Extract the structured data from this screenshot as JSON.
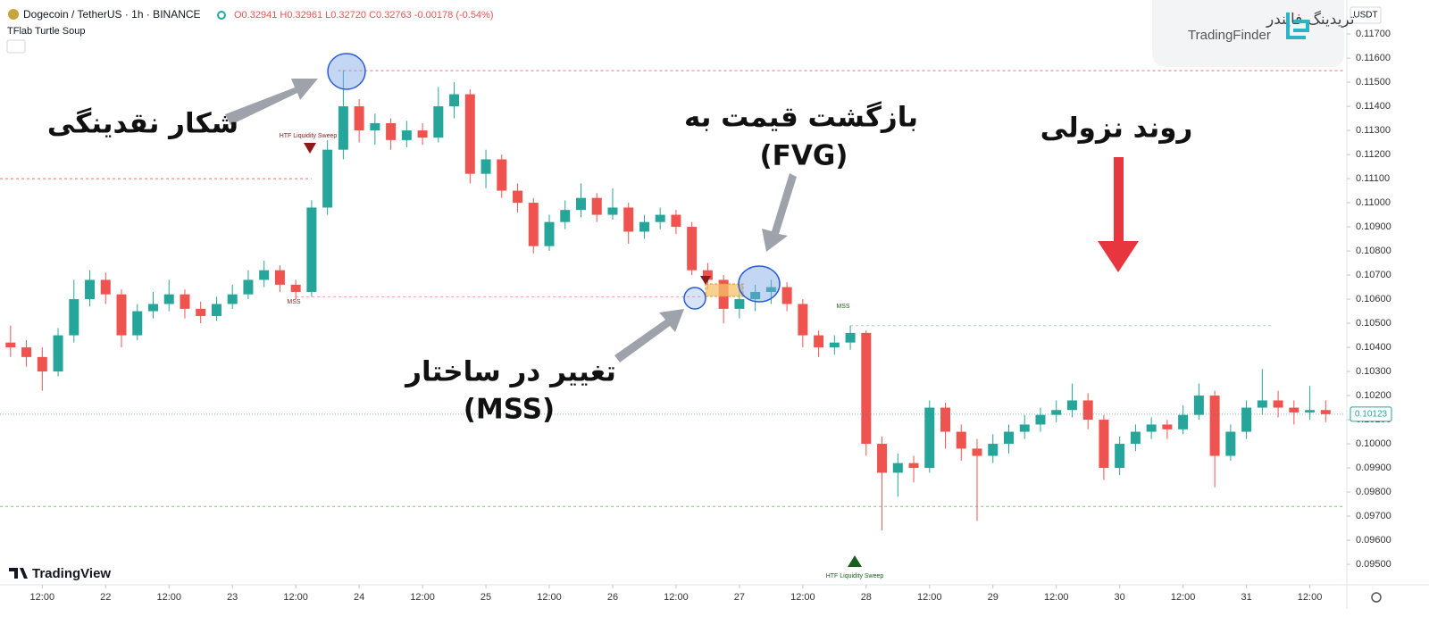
{
  "header": {
    "symbol": "Dogecoin / TetherUS · 1h · BINANCE",
    "ohlc": "O0.32941 H0.32961 L0.32720 C0.32763 -0.00178 (-0.54%)",
    "indicator": "TFlab Turtle Soup",
    "currency": "USDT",
    "brand_fa": "تریدینگ فایندر",
    "brand_en": "TradingFinder",
    "platform": "TradingView"
  },
  "annotations": {
    "liquidity_hunt": "شکار نقدینگی",
    "return_1": "بازگشت قیمت به",
    "return_2": "(FVG)",
    "downtrend": "روند نزولی",
    "mss_1": "تغییر در ساختار",
    "mss_2": "(MSS)",
    "sweep_top": "HTF Liquidity Sweep",
    "sweep_bottom": "HTF Liquidity Sweep",
    "mss_left": "MSS",
    "mss_right": "MSS"
  },
  "chart_data": {
    "type": "candlestick",
    "up_color": "#26a69a",
    "down_color": "#ef5350",
    "grid": false,
    "xlim": [
      4,
      258.5
    ],
    "ylim": [
      0.09415,
      0.11841
    ],
    "xticks": [
      {
        "value": 12,
        "label": "12:00"
      },
      {
        "value": 24,
        "label": "22"
      },
      {
        "value": 36,
        "label": "12:00"
      },
      {
        "value": 48,
        "label": "23"
      },
      {
        "value": 60,
        "label": "12:00"
      },
      {
        "value": 72,
        "label": "24"
      },
      {
        "value": 84,
        "label": "12:00"
      },
      {
        "value": 96,
        "label": "25"
      },
      {
        "value": 108,
        "label": "12:00"
      },
      {
        "value": 120,
        "label": "26"
      },
      {
        "value": 132,
        "label": "12:00"
      },
      {
        "value": 144,
        "label": "27"
      },
      {
        "value": 156,
        "label": "12:00"
      },
      {
        "value": 168,
        "label": "28"
      },
      {
        "value": 180,
        "label": "12:00"
      },
      {
        "value": 192,
        "label": "29"
      },
      {
        "value": 204,
        "label": "12:00"
      },
      {
        "value": 216,
        "label": "30"
      },
      {
        "value": 228,
        "label": "12:00"
      },
      {
        "value": 240,
        "label": "31"
      },
      {
        "value": 252,
        "label": "12:00"
      }
    ],
    "yticks": [
      {
        "value": 0.095,
        "label": "0.09500"
      },
      {
        "value": 0.096,
        "label": "0.09600"
      },
      {
        "value": 0.097,
        "label": "0.09700"
      },
      {
        "value": 0.098,
        "label": "0.09800"
      },
      {
        "value": 0.099,
        "label": "0.09900"
      },
      {
        "value": 0.1,
        "label": "0.10000"
      },
      {
        "value": 0.101,
        "label": "0.10100"
      },
      {
        "value": 0.102,
        "label": "0.10200"
      },
      {
        "value": 0.103,
        "label": "0.10300"
      },
      {
        "value": 0.104,
        "label": "0.10400"
      },
      {
        "value": 0.105,
        "label": "0.10500"
      },
      {
        "value": 0.106,
        "label": "0.10600"
      },
      {
        "value": 0.107,
        "label": "0.10700"
      },
      {
        "value": 0.108,
        "label": "0.10800"
      },
      {
        "value": 0.109,
        "label": "0.10900"
      },
      {
        "value": 0.11,
        "label": "0.11000"
      },
      {
        "value": 0.111,
        "label": "0.11100"
      },
      {
        "value": 0.112,
        "label": "0.11200"
      },
      {
        "value": 0.113,
        "label": "0.11300"
      },
      {
        "value": 0.114,
        "label": "0.11400"
      },
      {
        "value": 0.115,
        "label": "0.11500"
      },
      {
        "value": 0.116,
        "label": "0.11600"
      },
      {
        "value": 0.117,
        "label": "0.11700"
      }
    ],
    "levels": [
      {
        "value": 0.11548,
        "x": [
          68,
          258.5
        ],
        "color": "#e57373"
      },
      {
        "value": 0.111,
        "x": [
          4,
          63
        ],
        "color": "#e57373"
      },
      {
        "value": 0.1061,
        "x": [
          60,
          137
        ],
        "color": "#f0a0a0"
      },
      {
        "value": 0.1049,
        "x": [
          165,
          245
        ],
        "color": "#a5d6a7"
      },
      {
        "value": 0.0974,
        "x": [
          4,
          258.5
        ],
        "color": "#81c784"
      }
    ],
    "x": [
      6,
      9,
      12,
      15,
      18,
      21,
      24,
      27,
      30,
      33,
      36,
      39,
      42,
      45,
      48,
      51,
      54,
      57,
      60,
      63,
      66,
      69,
      72,
      75,
      78,
      81,
      84,
      87,
      90,
      93,
      96,
      99,
      102,
      105,
      108,
      111,
      114,
      117,
      120,
      123,
      126,
      129,
      132,
      135,
      138,
      141,
      144,
      147,
      150,
      153,
      156,
      159,
      162,
      165,
      168,
      171,
      174,
      177,
      180,
      183,
      186,
      189,
      192,
      195,
      198,
      201,
      204,
      207,
      210,
      213,
      216,
      219,
      222,
      225,
      228,
      231,
      234,
      237,
      240,
      243,
      246,
      249,
      252,
      255
    ],
    "open": [
      0.1042,
      0.104,
      0.1036,
      0.103,
      0.1045,
      0.106,
      0.1068,
      0.1062,
      0.1045,
      0.1055,
      0.1058,
      0.1062,
      0.1056,
      0.1053,
      0.1058,
      0.1062,
      0.1068,
      0.1072,
      0.1066,
      0.1063,
      0.1098,
      0.1122,
      0.114,
      0.113,
      0.1133,
      0.1126,
      0.113,
      0.1127,
      0.114,
      0.1145,
      0.1112,
      0.1118,
      0.1105,
      0.11,
      0.1082,
      0.1092,
      0.1097,
      0.1102,
      0.1095,
      0.1098,
      0.1088,
      0.1092,
      0.1095,
      0.109,
      0.1072,
      0.1068,
      0.1056,
      0.106,
      0.1063,
      0.1065,
      0.1058,
      0.1045,
      0.104,
      0.1042,
      0.1046,
      0.1,
      0.0988,
      0.0992,
      0.099,
      0.1015,
      0.1005,
      0.0998,
      0.0995,
      0.1,
      0.1005,
      0.1008,
      0.1012,
      0.1014,
      0.1018,
      0.101,
      0.099,
      0.1,
      0.1005,
      0.1008,
      0.1006,
      0.1012,
      0.102,
      0.0995,
      0.1005,
      0.1015,
      0.1018,
      0.1015,
      0.1013,
      0.1014
    ],
    "high": [
      0.1049,
      0.1043,
      0.104,
      0.1048,
      0.1068,
      0.1072,
      0.1071,
      0.1064,
      0.1058,
      0.1063,
      0.1068,
      0.1064,
      0.1059,
      0.1061,
      0.1066,
      0.1072,
      0.1076,
      0.1074,
      0.1068,
      0.1101,
      0.1126,
      0.1155,
      0.1143,
      0.1137,
      0.1135,
      0.1134,
      0.1133,
      0.1148,
      0.115,
      0.1147,
      0.1122,
      0.112,
      0.1108,
      0.1102,
      0.1095,
      0.1101,
      0.1108,
      0.1104,
      0.1106,
      0.11,
      0.1095,
      0.1098,
      0.1097,
      0.1092,
      0.1075,
      0.107,
      0.1064,
      0.1066,
      0.1068,
      0.1067,
      0.106,
      0.1047,
      0.1045,
      0.1049,
      0.1047,
      0.1003,
      0.0996,
      0.0995,
      0.1018,
      0.1017,
      0.1008,
      0.1002,
      0.1004,
      0.1008,
      0.1012,
      0.1015,
      0.1018,
      0.1025,
      0.1021,
      0.1012,
      0.1003,
      0.1008,
      0.1011,
      0.101,
      0.1016,
      0.1025,
      0.1022,
      0.1008,
      0.1018,
      0.1031,
      0.1022,
      0.1018,
      0.1024,
      0.1018
    ],
    "low": [
      0.1036,
      0.1032,
      0.1022,
      0.1028,
      0.1042,
      0.1057,
      0.1058,
      0.104,
      0.1043,
      0.1052,
      0.1055,
      0.1052,
      0.105,
      0.1051,
      0.1056,
      0.106,
      0.1065,
      0.1063,
      0.106,
      0.1061,
      0.1095,
      0.1118,
      0.1125,
      0.1124,
      0.1122,
      0.1123,
      0.1124,
      0.1125,
      0.1135,
      0.1108,
      0.1106,
      0.1102,
      0.1096,
      0.1079,
      0.108,
      0.1089,
      0.1094,
      0.1092,
      0.1093,
      0.1083,
      0.1085,
      0.1089,
      0.1087,
      0.107,
      0.1064,
      0.105,
      0.1052,
      0.1055,
      0.1058,
      0.1055,
      0.104,
      0.1036,
      0.1037,
      0.1039,
      0.0995,
      0.0964,
      0.0978,
      0.0984,
      0.0988,
      0.0998,
      0.0993,
      0.0968,
      0.0992,
      0.0996,
      0.1002,
      0.1005,
      0.1009,
      0.1011,
      0.1006,
      0.0985,
      0.0987,
      0.0997,
      0.1002,
      0.1002,
      0.1004,
      0.101,
      0.0982,
      0.0993,
      0.1002,
      0.1012,
      0.1011,
      0.1008,
      0.101,
      0.1009
    ],
    "close": [
      0.104,
      0.1036,
      0.103,
      0.1045,
      0.106,
      0.1068,
      0.1062,
      0.1045,
      0.1055,
      0.1058,
      0.1062,
      0.1056,
      0.1053,
      0.1058,
      0.1062,
      0.1068,
      0.1072,
      0.1066,
      0.1063,
      0.1098,
      0.1122,
      0.114,
      0.113,
      0.1133,
      0.1126,
      0.113,
      0.1127,
      0.114,
      0.1145,
      0.1112,
      0.1118,
      0.1105,
      0.11,
      0.1082,
      0.1092,
      0.1097,
      0.1102,
      0.1095,
      0.1098,
      0.1088,
      0.1092,
      0.1095,
      0.109,
      0.1072,
      0.1068,
      0.1056,
      0.106,
      0.1063,
      0.1065,
      0.1058,
      0.1045,
      0.104,
      0.1042,
      0.1046,
      0.1,
      0.0988,
      0.0992,
      0.099,
      0.1015,
      0.1005,
      0.0998,
      0.0995,
      0.1,
      0.1005,
      0.1008,
      0.1012,
      0.1014,
      0.1018,
      0.101,
      0.099,
      0.1,
      0.1005,
      0.1008,
      0.1006,
      0.1012,
      0.102,
      0.0995,
      0.1005,
      0.1015,
      0.1018,
      0.1015,
      0.1013,
      0.1014,
      0.10123
    ]
  }
}
